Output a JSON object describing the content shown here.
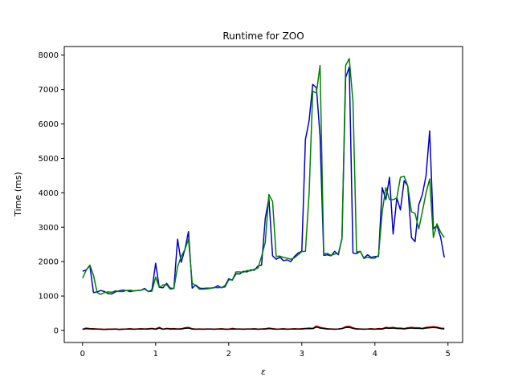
{
  "chart_data": {
    "type": "line",
    "title": "Runtime for ZOO",
    "xlabel": "ε",
    "ylabel": "Time (ms)",
    "xlim": [
      -0.25,
      5.2
    ],
    "ylim": [
      -350,
      8250
    ],
    "xticks": [
      0,
      1,
      2,
      3,
      4,
      5
    ],
    "yticks": [
      0,
      1000,
      2000,
      3000,
      4000,
      5000,
      6000,
      7000,
      8000
    ],
    "grid": false,
    "legend": "none",
    "x": [
      0,
      0.05,
      0.1,
      0.15,
      0.2,
      0.25,
      0.3,
      0.35,
      0.4,
      0.45,
      0.5,
      0.55,
      0.6,
      0.65,
      0.7,
      0.75,
      0.8,
      0.85,
      0.9,
      0.95,
      1.0,
      1.05,
      1.1,
      1.15,
      1.2,
      1.25,
      1.3,
      1.35,
      1.4,
      1.45,
      1.5,
      1.55,
      1.6,
      1.65,
      1.7,
      1.75,
      1.8,
      1.85,
      1.9,
      1.95,
      2.0,
      2.05,
      2.1,
      2.15,
      2.2,
      2.25,
      2.3,
      2.35,
      2.4,
      2.45,
      2.5,
      2.55,
      2.6,
      2.65,
      2.7,
      2.75,
      2.8,
      2.85,
      2.9,
      2.95,
      3.0,
      3.05,
      3.1,
      3.15,
      3.2,
      3.25,
      3.3,
      3.35,
      3.4,
      3.45,
      3.5,
      3.55,
      3.6,
      3.65,
      3.7,
      3.75,
      3.8,
      3.85,
      3.9,
      3.95,
      4.0,
      4.05,
      4.1,
      4.15,
      4.2,
      4.25,
      4.3,
      4.35,
      4.4,
      4.45,
      4.5,
      4.55,
      4.6,
      4.65,
      4.7,
      4.75,
      4.8,
      4.85,
      4.9,
      4.95
    ],
    "series": [
      {
        "color": "#0000cc",
        "values": [
          1720,
          1760,
          1880,
          1100,
          1120,
          1160,
          1130,
          1070,
          1060,
          1120,
          1150,
          1170,
          1160,
          1130,
          1150,
          1160,
          1170,
          1220,
          1130,
          1180,
          1950,
          1250,
          1240,
          1370,
          1230,
          1220,
          2650,
          1980,
          2350,
          2870,
          1230,
          1320,
          1230,
          1220,
          1230,
          1230,
          1240,
          1300,
          1240,
          1300,
          1500,
          1460,
          1650,
          1640,
          1720,
          1700,
          1760,
          1750,
          1870,
          1900,
          3250,
          3850,
          2170,
          2070,
          2130,
          2030,
          2050,
          2000,
          2150,
          2250,
          2300,
          5550,
          6100,
          7150,
          7050,
          5650,
          2180,
          2200,
          2170,
          2300,
          2200,
          2680,
          7350,
          7650,
          2250,
          2230,
          2300,
          2100,
          2200,
          2120,
          2150,
          2150,
          4150,
          3800,
          4450,
          2800,
          3850,
          3500,
          4350,
          4200,
          2700,
          2580,
          3650,
          3950,
          4500,
          5800,
          2950,
          3050,
          2700,
          2120
        ]
      },
      {
        "color": "#008000",
        "values": [
          1520,
          1750,
          1900,
          1600,
          1100,
          1050,
          1100,
          1120,
          1110,
          1150,
          1130,
          1130,
          1160,
          1170,
          1150,
          1160,
          1170,
          1200,
          1130,
          1140,
          1550,
          1250,
          1320,
          1330,
          1200,
          1220,
          1850,
          2150,
          2350,
          2650,
          1380,
          1300,
          1200,
          1200,
          1210,
          1220,
          1250,
          1240,
          1250,
          1260,
          1470,
          1470,
          1700,
          1700,
          1690,
          1740,
          1730,
          1780,
          1810,
          2150,
          2560,
          3950,
          3750,
          2150,
          2160,
          2120,
          2100,
          2070,
          2110,
          2200,
          2290,
          2300,
          4000,
          6950,
          6900,
          7700,
          2230,
          2240,
          2180,
          2220,
          2240,
          2660,
          7700,
          7900,
          6650,
          2280,
          2300,
          2090,
          2130,
          2100,
          2100,
          2180,
          3450,
          4150,
          3800,
          3800,
          3850,
          4450,
          4480,
          4200,
          3450,
          3400,
          2950,
          3450,
          4000,
          4400,
          2700,
          3100,
          2850,
          2700
        ]
      },
      {
        "color": "#cc0000",
        "values": [
          40,
          70,
          55,
          50,
          45,
          40,
          35,
          40,
          40,
          45,
          35,
          40,
          45,
          50,
          40,
          45,
          50,
          45,
          50,
          60,
          45,
          90,
          40,
          60,
          50,
          55,
          45,
          50,
          80,
          90,
          50,
          40,
          45,
          40,
          45,
          45,
          40,
          45,
          50,
          40,
          40,
          60,
          45,
          45,
          40,
          45,
          45,
          50,
          40,
          45,
          50,
          70,
          55,
          40,
          45,
          50,
          40,
          45,
          50,
          45,
          50,
          60,
          70,
          60,
          130,
          90,
          70,
          50,
          45,
          40,
          45,
          60,
          110,
          120,
          80,
          50,
          45,
          40,
          45,
          50,
          40,
          55,
          50,
          90,
          80,
          90,
          70,
          70,
          55,
          80,
          90,
          80,
          80,
          60,
          90,
          100,
          110,
          100,
          70,
          60
        ]
      },
      {
        "color": "#000000",
        "values": [
          30,
          50,
          45,
          40,
          40,
          35,
          30,
          35,
          35,
          40,
          30,
          35,
          40,
          40,
          35,
          40,
          40,
          40,
          40,
          50,
          35,
          70,
          35,
          50,
          40,
          45,
          40,
          40,
          60,
          70,
          40,
          35,
          40,
          35,
          40,
          40,
          35,
          40,
          40,
          35,
          35,
          45,
          40,
          40,
          35,
          40,
          40,
          40,
          35,
          40,
          40,
          55,
          45,
          35,
          40,
          40,
          35,
          40,
          40,
          40,
          40,
          50,
          55,
          50,
          100,
          70,
          55,
          40,
          40,
          35,
          40,
          50,
          85,
          90,
          60,
          40,
          40,
          35,
          40,
          40,
          35,
          45,
          40,
          70,
          60,
          70,
          55,
          55,
          45,
          60,
          70,
          60,
          60,
          50,
          70,
          80,
          85,
          80,
          55,
          45
        ]
      }
    ]
  }
}
